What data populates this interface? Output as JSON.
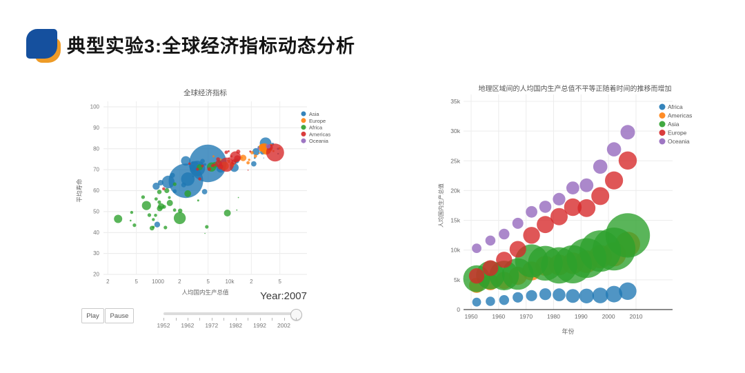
{
  "header": {
    "title": "典型实验3:全球经济指标动态分析"
  },
  "slider": {
    "play": "Play",
    "pause": "Pause",
    "year_text": "Year:2007",
    "step_years": [
      1952,
      1957,
      1962,
      1967,
      1972,
      1977,
      1982,
      1987,
      1992,
      1997,
      2002,
      2007
    ],
    "tick_labels": [
      "1952",
      "1962",
      "1972",
      "1982",
      "1992",
      "2002"
    ]
  },
  "chart_data": [
    {
      "id": "left",
      "type": "scatter",
      "title": "全球经济指标",
      "xlabel": "人均国内生产总值",
      "ylabel": "平均寿命",
      "x_scale": "log",
      "x_ticks": {
        "values": [
          200,
          500,
          1000,
          2000,
          5000,
          10000,
          20000,
          50000
        ],
        "labels": [
          "2",
          "5",
          "1000",
          "2",
          "5",
          "10k",
          "2",
          "5"
        ]
      },
      "y_ticks": [
        20,
        30,
        40,
        50,
        60,
        70,
        80,
        90,
        100
      ],
      "ylim": [
        20,
        100
      ],
      "year_shown": 2007,
      "legend_position": "right",
      "grid": true,
      "point_format": "[gdp_per_capita, life_expectancy, population_millions]",
      "series": [
        {
          "name": "Asia",
          "color": "#1f77b4",
          "points": [
            [
              975,
              43.8,
              31.9
            ],
            [
              29796,
              75.6,
              0.7
            ],
            [
              1391,
              64.1,
              150.4
            ],
            [
              1714,
              59.7,
              14.1
            ],
            [
              4959,
              73.0,
              1318.7
            ],
            [
              39725,
              82.2,
              7.0
            ],
            [
              2452,
              64.7,
              1110.4
            ],
            [
              3541,
              70.6,
              223.5
            ],
            [
              11606,
              71.0,
              69.5
            ],
            [
              4471,
              59.5,
              27.5
            ],
            [
              25523,
              80.7,
              6.4
            ],
            [
              31656,
              82.6,
              127.5
            ],
            [
              4519,
              72.5,
              6.1
            ],
            [
              1593,
              67.3,
              23.3
            ],
            [
              23348,
              78.6,
              49.0
            ],
            [
              47307,
              77.6,
              2.5
            ],
            [
              10461,
              72.0,
              4.0
            ],
            [
              12452,
              74.2,
              24.8
            ],
            [
              3096,
              66.8,
              2.9
            ],
            [
              944,
              62.1,
              47.8
            ],
            [
              1091,
              63.8,
              28.9
            ],
            [
              22316,
              75.6,
              3.2
            ],
            [
              2606,
              65.5,
              169.3
            ],
            [
              3190,
              71.7,
              91.1
            ],
            [
              21655,
              72.8,
              27.6
            ],
            [
              47143,
              80.0,
              4.6
            ],
            [
              3970,
              72.4,
              20.4
            ],
            [
              4184,
              74.1,
              19.3
            ],
            [
              28718,
              78.4,
              23.2
            ],
            [
              7458,
              70.6,
              65.1
            ],
            [
              2442,
              74.2,
              85.3
            ],
            [
              3025,
              73.4,
              4.0
            ],
            [
              2281,
              62.7,
              22.2
            ]
          ]
        },
        {
          "name": "Europe",
          "color": "#ff7f0e",
          "points": [
            [
              5937,
              76.4,
              3.6
            ],
            [
              36126,
              79.8,
              8.2
            ],
            [
              33693,
              79.4,
              10.4
            ],
            [
              7446,
              74.9,
              4.6
            ],
            [
              10681,
              73.0,
              7.3
            ],
            [
              14619,
              75.7,
              4.5
            ],
            [
              22833,
              76.5,
              10.2
            ],
            [
              35278,
              78.3,
              5.5
            ],
            [
              33207,
              79.3,
              5.2
            ],
            [
              30470,
              80.7,
              61.1
            ],
            [
              32170,
              79.4,
              82.4
            ],
            [
              27538,
              79.5,
              10.7
            ],
            [
              18009,
              73.3,
              10.0
            ],
            [
              36181,
              81.8,
              0.3
            ],
            [
              40676,
              78.9,
              4.1
            ],
            [
              28570,
              80.5,
              58.1
            ],
            [
              9254,
              74.5,
              0.7
            ],
            [
              36798,
              79.8,
              16.6
            ],
            [
              49357,
              80.2,
              4.6
            ],
            [
              15390,
              75.6,
              38.5
            ],
            [
              20510,
              78.1,
              10.6
            ],
            [
              10808,
              72.5,
              22.3
            ],
            [
              9787,
              74.0,
              10.2
            ],
            [
              18678,
              74.7,
              5.4
            ],
            [
              25768,
              77.9,
              2.0
            ],
            [
              28821,
              80.9,
              40.4
            ],
            [
              33860,
              80.9,
              9.0
            ],
            [
              37506,
              81.7,
              7.5
            ],
            [
              8458,
              71.8,
              71.2
            ],
            [
              33203,
              79.4,
              60.8
            ]
          ]
        },
        {
          "name": "Africa",
          "color": "#2ca02c",
          "points": [
            [
              6223,
              72.3,
              33.3
            ],
            [
              4797,
              42.7,
              12.4
            ],
            [
              1441,
              56.7,
              8.1
            ],
            [
              12570,
              50.7,
              1.6
            ],
            [
              1217,
              52.3,
              14.3
            ],
            [
              430,
              49.6,
              8.4
            ],
            [
              2042,
              50.4,
              17.7
            ],
            [
              1704,
              50.7,
              10.2
            ],
            [
              278,
              46.5,
              64.6
            ],
            [
              3633,
              55.3,
              3.8
            ],
            [
              5581,
              71.3,
              80.3
            ],
            [
              691,
              52.9,
              76.5
            ],
            [
              13206,
              56.7,
              1.5
            ],
            [
              1328,
              60.0,
              22.9
            ],
            [
              942,
              56.0,
              9.9
            ],
            [
              1463,
              54.1,
              35.6
            ],
            [
              415,
              45.7,
              3.2
            ],
            [
              12057,
              74.0,
              6.0
            ],
            [
              1045,
              59.4,
              19.2
            ],
            [
              759,
              48.3,
              13.3
            ],
            [
              1043,
              54.5,
              12.0
            ],
            [
              3820,
              71.2,
              33.8
            ],
            [
              824,
              42.1,
              20.0
            ],
            [
              620,
              56.9,
              12.9
            ],
            [
              2014,
              46.9,
              135.0
            ],
            [
              863,
              46.2,
              8.9
            ],
            [
              1712,
              63.1,
              12.3
            ],
            [
              863,
              42.6,
              6.1
            ],
            [
              926,
              48.2,
              9.1
            ],
            [
              9270,
              49.3,
              44.0
            ],
            [
              2602,
              58.6,
              42.3
            ],
            [
              4513,
              39.6,
              1.1
            ],
            [
              1107,
              52.5,
              38.1
            ],
            [
              7093,
              73.9,
              10.3
            ],
            [
              1056,
              51.5,
              29.2
            ],
            [
              1271,
              42.4,
              11.7
            ],
            [
              470,
              43.5,
              12.3
            ]
          ]
        },
        {
          "name": "Americas",
          "color": "#d62728",
          "points": [
            [
              12779,
              75.3,
              40.3
            ],
            [
              3822,
              65.6,
              9.1
            ],
            [
              9066,
              72.4,
              190.0
            ],
            [
              36319,
              80.7,
              33.4
            ],
            [
              13172,
              78.6,
              16.3
            ],
            [
              7007,
              72.9,
              44.2
            ],
            [
              9645,
              78.8,
              4.1
            ],
            [
              8948,
              78.3,
              11.4
            ],
            [
              6025,
              72.2,
              9.3
            ],
            [
              6873,
              75.0,
              13.8
            ],
            [
              5728,
              71.9,
              6.9
            ],
            [
              5186,
              70.3,
              12.6
            ],
            [
              1202,
              60.9,
              8.3
            ],
            [
              3548,
              70.2,
              7.5
            ],
            [
              7321,
              72.6,
              2.8
            ],
            [
              11978,
              76.2,
              108.7
            ],
            [
              2749,
              72.9,
              5.7
            ],
            [
              9809,
              75.5,
              3.2
            ],
            [
              4173,
              71.8,
              6.7
            ],
            [
              7409,
              71.4,
              28.7
            ],
            [
              19329,
              78.7,
              4.0
            ],
            [
              18009,
              69.8,
              1.1
            ],
            [
              10611,
              76.4,
              3.4
            ],
            [
              42952,
              78.2,
              301.1
            ],
            [
              11415,
              73.7,
              26.1
            ]
          ]
        },
        {
          "name": "Oceania",
          "color": "#9467bd",
          "points": [
            [
              34435,
              81.2,
              20.4
            ],
            [
              25185,
              80.2,
              4.1
            ]
          ]
        }
      ]
    },
    {
      "id": "right",
      "type": "bubble",
      "title": "地理区域间的人均国内生产总值不平等正随着时间的推移而增加",
      "xlabel": "年份",
      "ylabel": "人均国内生产总值",
      "x": [
        1952,
        1957,
        1962,
        1967,
        1972,
        1977,
        1982,
        1987,
        1992,
        1997,
        2002,
        2007
      ],
      "x_ticks": [
        1950,
        1960,
        1970,
        1980,
        1990,
        2000,
        2010
      ],
      "y_ticks": {
        "values": [
          0,
          5000,
          10000,
          15000,
          20000,
          25000,
          30000,
          35000
        ],
        "labels": [
          "0",
          "5k",
          "10k",
          "15k",
          "20k",
          "25k",
          "30k",
          "35k"
        ]
      },
      "ylim": [
        0,
        35000
      ],
      "legend_position": "right",
      "grid": true,
      "series": [
        {
          "name": "Africa",
          "color": "#1f77b4",
          "values": [
            1253,
            1385,
            1598,
            2050,
            2340,
            2586,
            2482,
            2283,
            2282,
            2379,
            2599,
            3089
          ],
          "bubble_size": [
            4.6,
            5.1,
            5.7,
            6.4,
            7.3,
            8.3,
            9.6,
            11.1,
            12.7,
            14.4,
            16.0,
            17.9
          ]
        },
        {
          "name": "Americas",
          "color": "#ff7f0e",
          "values": [
            4079,
            4616,
            4902,
            5668,
            6491,
            7352,
            7507,
            7793,
            8045,
            8889,
            9287,
            11003
          ],
          "bubble_size": [
            13.8,
            15.5,
            17.3,
            19.4,
            21.2,
            23.1,
            25.2,
            27.3,
            29.6,
            31.9,
            34.0,
            36.0
          ]
        },
        {
          "name": "Asia",
          "color": "#2ca02c",
          "values": [
            5195,
            5788,
            5729,
            5971,
            8187,
            7791,
            7434,
            7608,
            8640,
            9834,
            10174,
            12473
          ],
          "bubble_size": [
            42.3,
            47.4,
            51.4,
            57.7,
            64.0,
            70.5,
            77.0,
            84.5,
            92.4,
            100.1,
            107.5,
            115.5
          ]
        },
        {
          "name": "Europe",
          "color": "#d62728",
          "values": [
            5661,
            6963,
            8365,
            10143,
            12479,
            14284,
            15618,
            17214,
            17061,
            19076,
            21711,
            25054
          ],
          "bubble_size": [
            13.9,
            14.6,
            15.3,
            16.0,
            16.5,
            17.0,
            17.4,
            17.8,
            18.4,
            18.9,
            19.2,
            19.5
          ]
        },
        {
          "name": "Oceania",
          "color": "#9467bd",
          "values": [
            10298,
            11599,
            12696,
            14495,
            16418,
            17283,
            18555,
            20448,
            20894,
            24024,
            26939,
            29810
          ],
          "bubble_size": [
            5.3,
            5.9,
            6.6,
            7.1,
            7.9,
            8.6,
            9.2,
            9.9,
            10.9,
            11.8,
            11.7,
            12.3
          ]
        }
      ]
    }
  ]
}
